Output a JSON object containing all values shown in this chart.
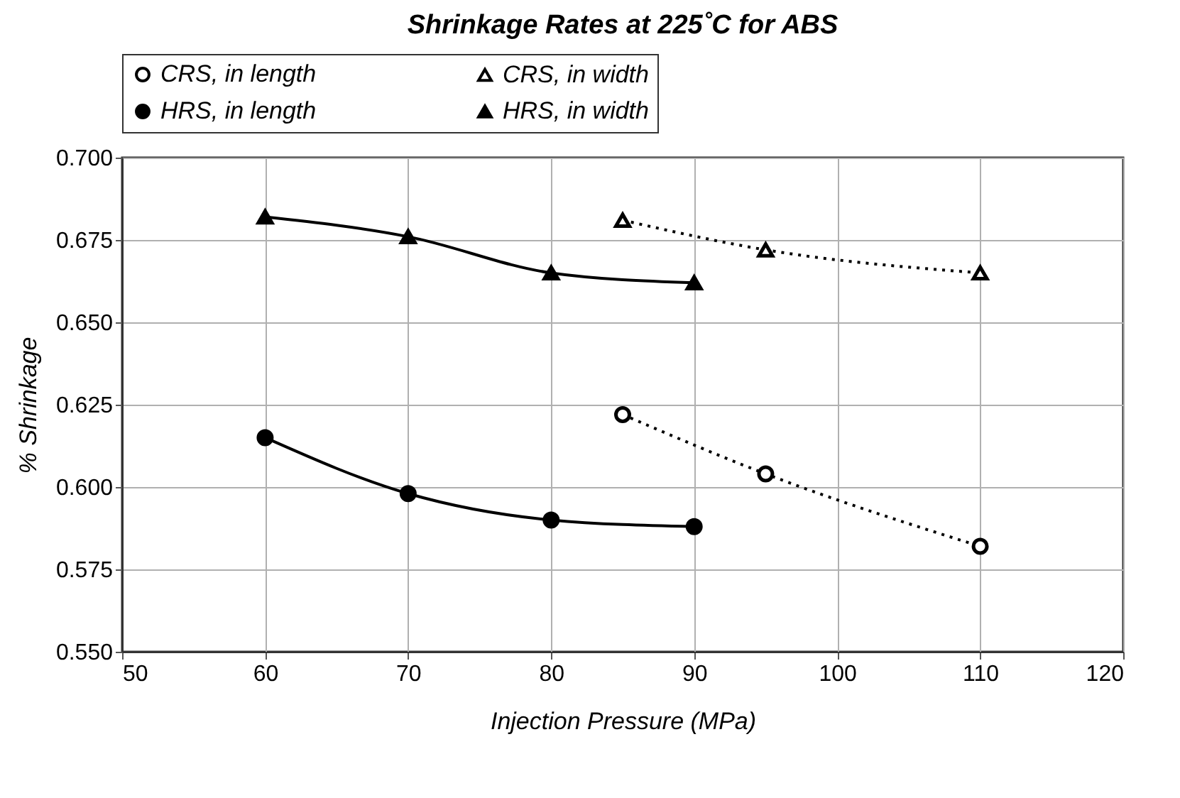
{
  "chart_data": {
    "type": "line",
    "title": "Shrinkage Rates at 225˚C for ABS",
    "xlabel": "Injection Pressure (MPa)",
    "ylabel": "% Shrinkage",
    "xlim": [
      50,
      120
    ],
    "xticks": [
      50,
      60,
      70,
      80,
      90,
      100,
      110,
      120
    ],
    "ylim": [
      0.55,
      0.7
    ],
    "yticks": [
      {
        "value": 0.55,
        "label": "0.550"
      },
      {
        "value": 0.575,
        "label": "0.575"
      },
      {
        "value": 0.6,
        "label": "0.600"
      },
      {
        "value": 0.625,
        "label": "0.625"
      },
      {
        "value": 0.65,
        "label": "0.650"
      },
      {
        "value": 0.675,
        "label": "0.675"
      },
      {
        "value": 0.7,
        "label": "0.700"
      }
    ],
    "grid": true,
    "legend": "top",
    "series": [
      {
        "name": "CRS, in length",
        "color": "#000000",
        "x": [
          85,
          95,
          110
        ],
        "values": [
          0.622,
          0.604,
          0.582
        ],
        "line_style": "dotted",
        "marker": "circle"
      },
      {
        "name": "CRS, in width",
        "color": "#000000",
        "x": [
          85,
          95,
          110
        ],
        "values": [
          0.681,
          0.672,
          0.665
        ],
        "line_style": "dotted",
        "marker": "triangle"
      },
      {
        "name": "HRS, in length",
        "color": "#000000",
        "x": [
          60,
          70,
          80,
          90
        ],
        "values": [
          0.615,
          0.598,
          0.59,
          0.588
        ],
        "line_style": "solid",
        "marker": "circle"
      },
      {
        "name": "HRS, in width",
        "color": "#000000",
        "x": [
          60,
          70,
          80,
          90
        ],
        "values": [
          0.682,
          0.676,
          0.665,
          0.662
        ],
        "line_style": "solid",
        "marker": "triangle"
      }
    ]
  }
}
